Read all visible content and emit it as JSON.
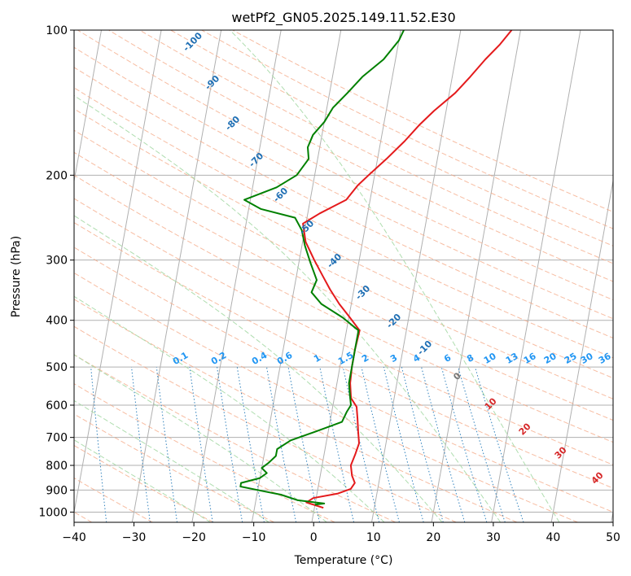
{
  "chart_data": {
    "type": "line",
    "title": "wetPf2_GN05.2025.149.11.52.E30",
    "xlabel": "Temperature (°C)",
    "ylabel": "Pressure (hPa)",
    "xlim": [
      -40,
      50
    ],
    "ylim": [
      1050,
      100
    ],
    "y_scale": "log",
    "x_ticks": [
      -40,
      -30,
      -20,
      -10,
      0,
      10,
      20,
      30,
      40,
      50
    ],
    "y_ticks": [
      100,
      200,
      300,
      400,
      500,
      600,
      700,
      800,
      900,
      1000
    ],
    "grid": true,
    "series": [
      {
        "color": "#e41a1c",
        "points": [
          [
            1.5,
            980
          ],
          [
            -1.5,
            955
          ],
          [
            -0.5,
            935
          ],
          [
            3.5,
            915
          ],
          [
            5.5,
            895
          ],
          [
            6,
            870
          ],
          [
            5.3,
            840
          ],
          [
            4.8,
            800
          ],
          [
            5.2,
            760
          ],
          [
            5.5,
            720
          ],
          [
            5,
            680
          ],
          [
            4.5,
            640
          ],
          [
            4,
            605
          ],
          [
            2.8,
            580
          ],
          [
            2.2,
            540
          ],
          [
            2,
            500
          ],
          [
            2,
            460
          ],
          [
            2.2,
            420
          ],
          [
            0.2,
            395
          ],
          [
            -2,
            370
          ],
          [
            -4,
            345
          ],
          [
            -5.5,
            325
          ],
          [
            -7.5,
            300
          ],
          [
            -9.5,
            275
          ],
          [
            -10.5,
            252
          ],
          [
            -8,
            240
          ],
          [
            -4,
            225
          ],
          [
            -2.5,
            210
          ],
          [
            -1,
            200
          ],
          [
            1.5,
            185
          ],
          [
            4,
            170
          ],
          [
            6,
            157
          ],
          [
            8,
            147
          ],
          [
            11,
            135
          ],
          [
            13,
            125
          ],
          [
            15,
            115
          ],
          [
            17,
            107
          ],
          [
            18.5,
            100
          ]
        ]
      },
      {
        "color": "#008000",
        "points": [
          [
            0,
            965
          ],
          [
            1.5,
            960
          ],
          [
            -3,
            945
          ],
          [
            -6,
            920
          ],
          [
            -9,
            905
          ],
          [
            -13,
            885
          ],
          [
            -13,
            870
          ],
          [
            -10,
            850
          ],
          [
            -9,
            830
          ],
          [
            -10,
            810
          ],
          [
            -9,
            790
          ],
          [
            -8,
            765
          ],
          [
            -8,
            740
          ],
          [
            -6,
            710
          ],
          [
            -2,
            680
          ],
          [
            2,
            650
          ],
          [
            2.5,
            620
          ],
          [
            3,
            600
          ],
          [
            2.5,
            570
          ],
          [
            2,
            540
          ],
          [
            2,
            500
          ],
          [
            2,
            460
          ],
          [
            2,
            420
          ],
          [
            -1,
            395
          ],
          [
            -5,
            370
          ],
          [
            -7,
            350
          ],
          [
            -6.5,
            330
          ],
          [
            -8,
            305
          ],
          [
            -9.5,
            280
          ],
          [
            -10.5,
            260
          ],
          [
            -12,
            245
          ],
          [
            -18,
            235
          ],
          [
            -21,
            225
          ],
          [
            -16,
            212
          ],
          [
            -13,
            200
          ],
          [
            -11.5,
            185
          ],
          [
            -12,
            175
          ],
          [
            -11.5,
            165
          ],
          [
            -10,
            155
          ],
          [
            -9,
            145
          ],
          [
            -7,
            135
          ],
          [
            -5,
            125
          ],
          [
            -2,
            115
          ],
          [
            0,
            105
          ],
          [
            0.5,
            100
          ]
        ]
      }
    ],
    "annotations": {
      "dry_adiabat_labels": [
        "-100",
        "-90",
        "-80",
        "-70",
        "-60",
        "-50",
        "-40",
        "-30",
        "-20",
        "-10"
      ],
      "mixing_ratio_labels": [
        "0.1",
        "0.2",
        "0.4",
        "0.6",
        "1",
        "1.5",
        "2",
        "3",
        "4",
        "6",
        "8",
        "10",
        "13",
        "16",
        "20",
        "25",
        "30",
        "36"
      ],
      "moist_adiabat_labels": [
        "0",
        "10",
        "20",
        "30",
        "40"
      ]
    },
    "reference_lines": {
      "isotherms_deg_c": [
        -140,
        -130,
        -120,
        -110,
        -100,
        -90,
        -80,
        -70,
        -60,
        -50,
        -40,
        -30,
        -20,
        -10,
        0,
        10,
        20,
        30,
        40,
        50
      ],
      "dry_adiabats_deg_c": [
        -100,
        -90,
        -80,
        -70,
        -60,
        -50,
        -40,
        -30,
        -20,
        -10,
        0,
        10,
        20,
        30,
        40,
        50,
        60,
        70,
        80,
        90,
        100,
        110,
        120,
        130,
        140,
        150,
        160,
        170,
        180,
        190,
        200
      ],
      "moist_adiabats_deg_c": [
        -20,
        -10,
        0,
        10,
        20,
        30,
        40
      ],
      "mixing_ratios_g_per_kg": [
        0.1,
        0.2,
        0.4,
        0.6,
        1,
        1.5,
        2,
        3,
        4,
        6,
        8,
        10,
        13,
        16,
        20,
        25,
        30,
        36
      ]
    },
    "colors": {
      "temperature": "#e41a1c",
      "dewpoint": "#008000",
      "isotherm": "#b0b0b0",
      "dry_adiabat": "#f4a582",
      "moist_adiabat": "#a6d9a6",
      "mixing_ratio": "#3182bd",
      "mixing_label": "#2196f3",
      "dry_label": "#1f6fb4",
      "moist_label": "#d62728",
      "zero_label": "#777777",
      "tan_curve": "#d2b48c"
    }
  }
}
